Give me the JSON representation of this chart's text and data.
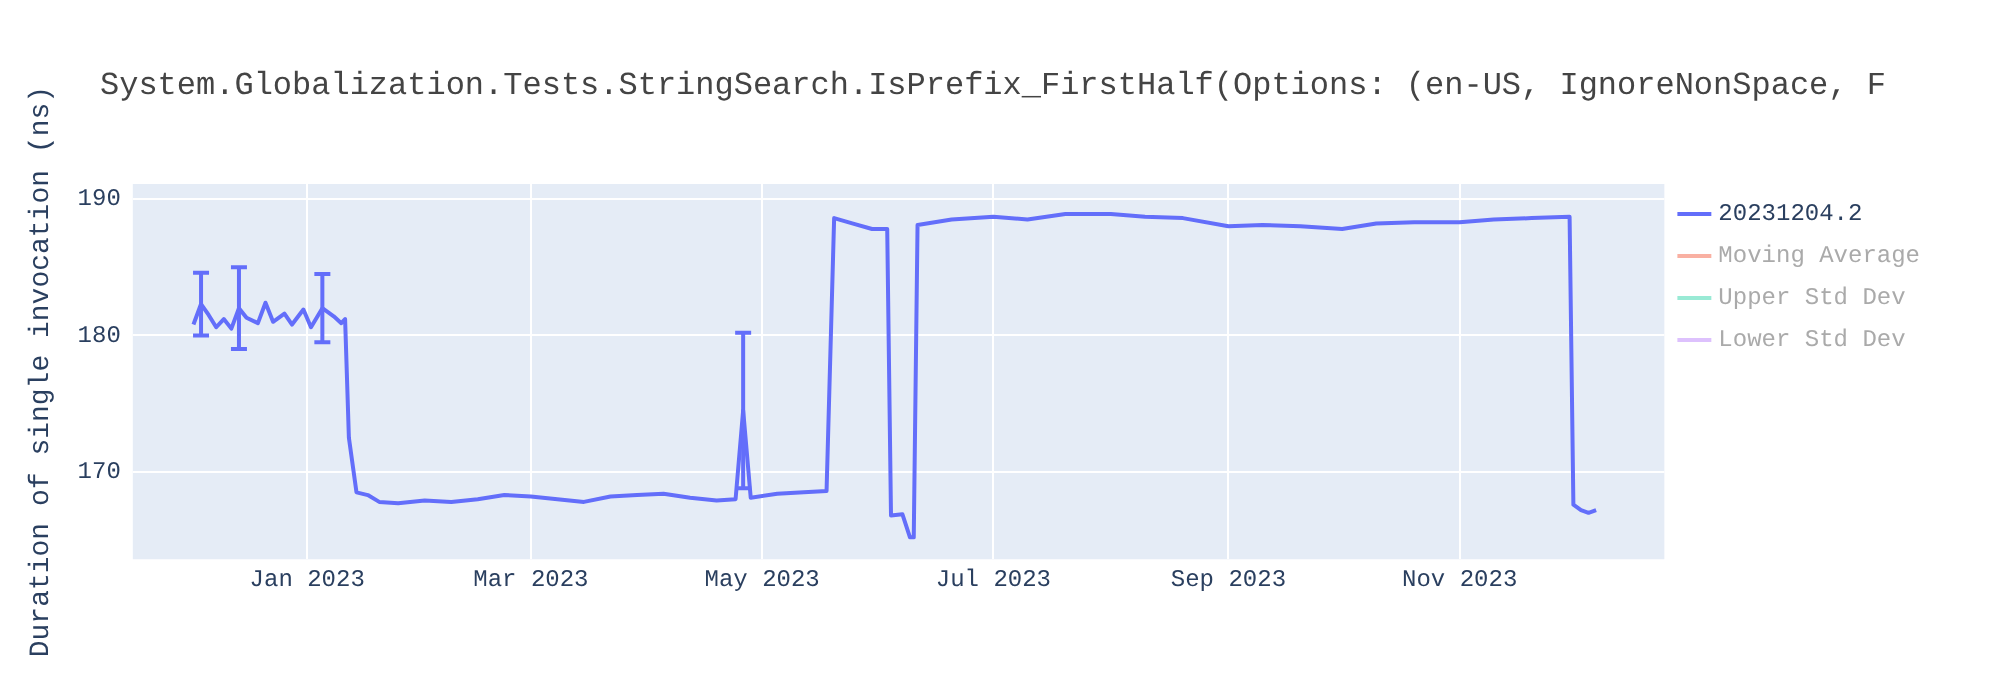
{
  "chart_data": {
    "type": "line",
    "title": "System.Globalization.Tests.StringSearch.IsPrefix_FirstHalf(Options: (en-US, IgnoreNonSpace, F",
    "ylabel": "Duration of single invocation (ns)",
    "xlim": [
      "2022-11-16",
      "2023-12-25"
    ],
    "xticks": [
      {
        "value": "2023-01-01",
        "label": "Jan 2023"
      },
      {
        "value": "2023-03-01",
        "label": "Mar 2023"
      },
      {
        "value": "2023-05-01",
        "label": "May 2023"
      },
      {
        "value": "2023-07-01",
        "label": "Jul 2023"
      },
      {
        "value": "2023-09-01",
        "label": "Sep 2023"
      },
      {
        "value": "2023-11-01",
        "label": "Nov 2023"
      }
    ],
    "ylim": [
      163.6,
      191.1
    ],
    "yticks": [
      170,
      180,
      190
    ],
    "grid": true,
    "legend": "top right",
    "series": [
      {
        "name": "20231204.2",
        "color": "#636efa",
        "x": [
          "2022-12-02",
          "2022-12-04",
          "2022-12-06",
          "2022-12-08",
          "2022-12-10",
          "2022-12-12",
          "2022-12-14",
          "2022-12-16",
          "2022-12-19",
          "2022-12-21",
          "2022-12-23",
          "2022-12-26",
          "2022-12-28",
          "2022-12-31",
          "2023-01-02",
          "2023-01-05",
          "2023-01-08",
          "2023-01-10",
          "2023-01-11",
          "2023-01-12",
          "2023-01-14",
          "2023-01-17",
          "2023-01-20",
          "2023-01-25",
          "2023-02-01",
          "2023-02-08",
          "2023-02-15",
          "2023-02-22",
          "2023-03-01",
          "2023-03-08",
          "2023-03-15",
          "2023-03-22",
          "2023-03-29",
          "2023-04-05",
          "2023-04-12",
          "2023-04-19",
          "2023-04-24",
          "2023-04-26",
          "2023-04-28",
          "2023-05-05",
          "2023-05-12",
          "2023-05-18",
          "2023-05-20",
          "2023-05-25",
          "2023-05-30",
          "2023-06-03",
          "2023-06-04",
          "2023-06-07",
          "2023-06-09",
          "2023-06-10",
          "2023-06-11",
          "2023-06-20",
          "2023-07-01",
          "2023-07-10",
          "2023-07-20",
          "2023-08-01",
          "2023-08-10",
          "2023-08-20",
          "2023-09-01",
          "2023-09-10",
          "2023-09-20",
          "2023-10-01",
          "2023-10-10",
          "2023-10-20",
          "2023-11-01",
          "2023-11-10",
          "2023-11-20",
          "2023-11-30",
          "2023-12-01",
          "2023-12-03",
          "2023-12-05",
          "2023-12-07"
        ],
        "values": [
          180.8,
          182.3,
          181.5,
          180.6,
          181.2,
          180.5,
          182.0,
          181.3,
          180.9,
          182.4,
          181.0,
          181.6,
          180.8,
          181.9,
          180.6,
          182.0,
          181.4,
          180.9,
          181.2,
          172.5,
          168.5,
          168.3,
          167.8,
          167.7,
          167.9,
          167.8,
          168.0,
          168.3,
          168.2,
          168.0,
          167.8,
          168.2,
          168.3,
          168.4,
          168.1,
          167.9,
          168.0,
          174.5,
          168.1,
          168.4,
          168.5,
          168.6,
          188.6,
          188.2,
          187.8,
          187.8,
          166.8,
          166.9,
          165.2,
          165.2,
          188.1,
          188.5,
          188.7,
          188.5,
          188.9,
          188.9,
          188.7,
          188.6,
          188.0,
          188.1,
          188.0,
          187.8,
          188.2,
          188.3,
          188.3,
          188.5,
          188.6,
          188.7,
          167.6,
          167.2,
          167.0,
          167.2
        ],
        "errors": [
          null,
          2.3,
          null,
          null,
          null,
          null,
          3,
          null,
          null,
          null,
          null,
          null,
          null,
          null,
          null,
          2.5,
          null,
          null,
          null,
          null,
          null,
          null,
          null,
          null,
          null,
          null,
          null,
          null,
          null,
          null,
          null,
          null,
          null,
          null,
          null,
          null,
          null,
          5.7,
          null,
          null,
          null,
          null,
          null,
          null,
          null,
          null,
          null,
          null,
          null,
          null,
          null,
          null,
          null,
          null,
          null,
          null,
          null,
          null,
          null,
          null,
          null,
          null,
          null,
          null,
          null,
          null,
          null,
          null,
          null,
          null,
          null,
          null
        ]
      },
      {
        "name": "Moving Average",
        "color": "#f9b0a2"
      },
      {
        "name": "Upper Std Dev",
        "color": "#99ead5"
      },
      {
        "name": "Lower Std Dev",
        "color": "#ddc1fd"
      }
    ]
  }
}
